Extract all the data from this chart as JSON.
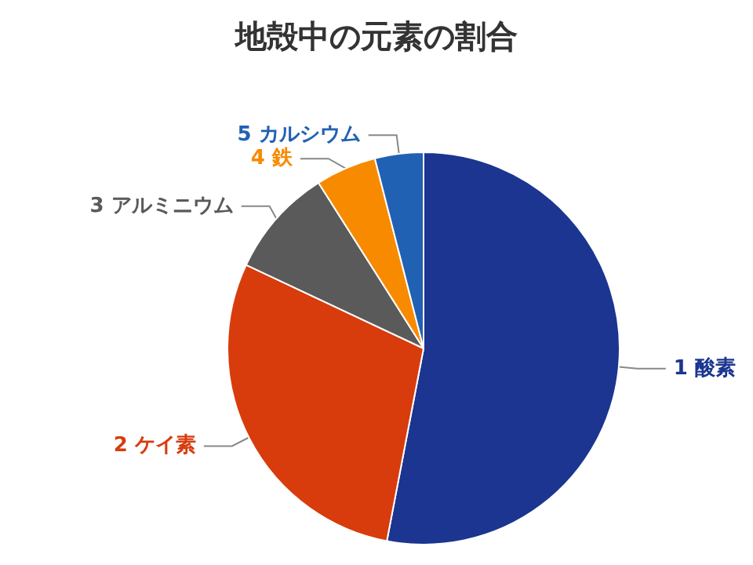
{
  "chart_data": {
    "type": "pie",
    "title": "地殻中の元素の割合",
    "categories": [
      "1 酸素",
      "2 ケイ素",
      "3 アルミニウム",
      "4 鉄",
      "5 カルシウム"
    ],
    "values": [
      53,
      29,
      9,
      5,
      4
    ],
    "colors": [
      "#1b3590",
      "#d83c0c",
      "#5a5a5a",
      "#f88a00",
      "#2161b4"
    ],
    "legend": false
  }
}
